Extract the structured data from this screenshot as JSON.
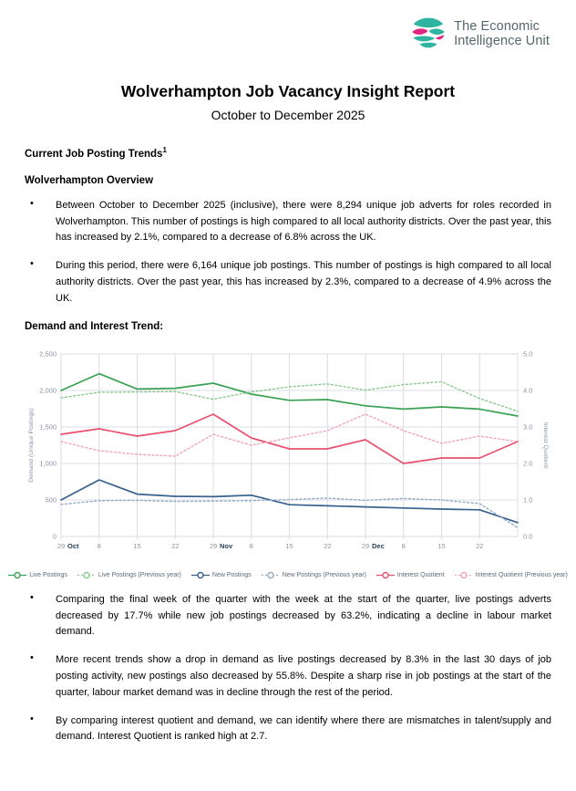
{
  "logo": {
    "line1": "The Economic",
    "line2": "Intelligence Unit",
    "teal": "#2eb4a1",
    "pink": "#e0267f",
    "text_color": "#55666d"
  },
  "title": "Wolverhampton Job Vacancy Insight Report",
  "subtitle": "October to December 2025",
  "sections": {
    "trends_heading": "Current Job Posting Trends",
    "trends_footnote_marker": "1",
    "overview_heading": "Wolverhampton Overview",
    "chart_heading": "Demand and Interest Trend:",
    "bullet1": "Between October to December 2025 (inclusive), there were 8,294 unique job adverts for roles recorded in Wolverhampton. This number of postings is high compared to all local authority districts. Over the past year, this has increased by 2.1%, compared to a decrease of 6.8% across the UK.",
    "bullet2": "During this period, there were 6,164 unique job postings. This number of postings is high compared to all local authority districts. Over the past year, this has increased by 2.3%, compared to a decrease of 4.9% across the UK.",
    "bullet3": "Comparing the final week of the quarter with the week at the start of the quarter, live postings adverts decreased by 17.7% while new job postings decreased by 63.2%, indicating a decline in labour market demand.",
    "bullet4": "More recent trends show a drop in demand as live postings decreased by 8.3% in the last 30 days of job posting activity, new postings also decreased by 55.8%. Despite a sharp rise in job postings at the start of the quarter, labour market demand was in decline through the rest of the period.",
    "bullet5": "By comparing interest quotient and demand, we can identify where there are mismatches in talent/supply and demand. Interest Quotient is ranked high at 2.7."
  },
  "chart_data": {
    "type": "line",
    "grid": true,
    "legend_position": "bottom",
    "left_axis": {
      "label": "Demand (Unique Postings)",
      "min": 0,
      "max": 2500,
      "tick_labels": [
        "0",
        "500",
        "1,000",
        "1,500",
        "2,000",
        "2,500"
      ]
    },
    "right_axis": {
      "label": "Interest Quotient",
      "min": 0,
      "max": 5,
      "tick_labels": [
        "0.0",
        "1.0",
        "2.0",
        "3.0",
        "4.0",
        "5.0"
      ]
    },
    "x_ticks": [
      {
        "day": "29",
        "month": "Oct"
      },
      {
        "day": "8"
      },
      {
        "day": "15"
      },
      {
        "day": "22"
      },
      {
        "day": "29",
        "month": "Nov"
      },
      {
        "day": "8"
      },
      {
        "day": "15"
      },
      {
        "day": "22"
      },
      {
        "day": "29",
        "month": "Dec"
      },
      {
        "day": "8"
      },
      {
        "day": "15"
      },
      {
        "day": "22"
      }
    ],
    "series": [
      {
        "name": "Live Postings",
        "axis": "left",
        "style": "solid",
        "color": "#3ba153",
        "values": [
          2000,
          2230,
          2020,
          2030,
          2100,
          1950,
          1865,
          1875,
          1790,
          1745,
          1775,
          1745,
          1650
        ]
      },
      {
        "name": "Live Postings (Previous year)",
        "axis": "left",
        "style": "dotted",
        "color": "#8cc98f",
        "values": [
          1900,
          1975,
          1980,
          1985,
          1880,
          1980,
          2050,
          2090,
          2005,
          2080,
          2120,
          1890,
          1715
        ]
      },
      {
        "name": "New Postings",
        "axis": "left",
        "style": "solid",
        "color": "#37618e",
        "values": [
          500,
          775,
          580,
          550,
          545,
          565,
          435,
          420,
          405,
          390,
          375,
          365,
          190
        ]
      },
      {
        "name": "New Postings (Previous year)",
        "axis": "left",
        "style": "dotted",
        "color": "#93aac6",
        "values": [
          440,
          490,
          495,
          480,
          485,
          490,
          505,
          525,
          495,
          520,
          500,
          450,
          120
        ]
      },
      {
        "name": "Interest Quotient",
        "axis": "right",
        "style": "solid",
        "color": "#e9516f",
        "values": [
          2.8,
          2.95,
          2.75,
          2.9,
          3.35,
          2.7,
          2.4,
          2.4,
          2.65,
          2.0,
          2.15,
          2.15,
          2.6
        ]
      },
      {
        "name": "Interest Quotient (Previous year)",
        "axis": "right",
        "style": "dotted",
        "color": "#f2a4b6",
        "values": [
          2.6,
          2.35,
          2.25,
          2.2,
          2.8,
          2.5,
          2.7,
          2.9,
          3.35,
          2.9,
          2.55,
          2.75,
          2.6
        ]
      }
    ]
  }
}
